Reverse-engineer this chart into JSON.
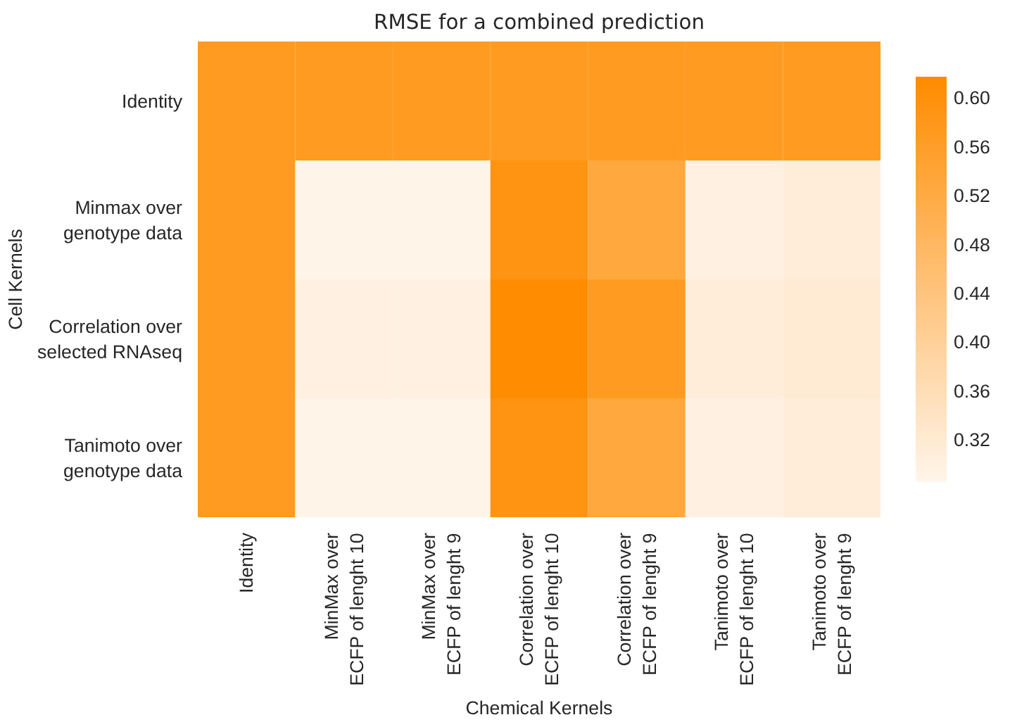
{
  "chart_data": {
    "type": "heatmap",
    "title": "RMSE for a combined prediction",
    "xlabel": "Chemical Kernels",
    "ylabel": "Cell Kernels",
    "categories": [
      "Identity",
      "MinMax over\nECFP of lenght 10",
      "MinMax over\nECFP of lenght 9",
      "Correlation over\nECFP of lenght 10",
      "Correlation over\nECFP of lenght 9",
      "Tanimoto over\nECFP of lenght 10",
      "Tanimoto over\nECFP of lenght 9"
    ],
    "y_categories": [
      "Identity",
      "Minmax over\ngenotype data",
      "Correlation over\nselected RNAseq",
      "Tanimoto over\ngenotype data"
    ],
    "cells": [
      [
        0.57,
        0.57,
        0.57,
        0.57,
        0.57,
        0.57,
        0.57
      ],
      [
        0.57,
        0.29,
        0.29,
        0.59,
        0.53,
        0.3,
        0.31
      ],
      [
        0.57,
        0.3,
        0.3,
        0.615,
        0.57,
        0.31,
        0.32
      ],
      [
        0.57,
        0.29,
        0.29,
        0.59,
        0.53,
        0.3,
        0.31
      ]
    ],
    "clim": [
      0.285,
      0.617
    ],
    "cticks": [
      0.32,
      0.36,
      {
        "value": 0.4,
        "label": "0.40"
      },
      0.44,
      0.48,
      0.52,
      0.56,
      {
        "value": 0.6,
        "label": "0.60"
      }
    ],
    "colors": [
      "#fff5eb",
      "#ff8c00"
    ],
    "grid": false
  }
}
